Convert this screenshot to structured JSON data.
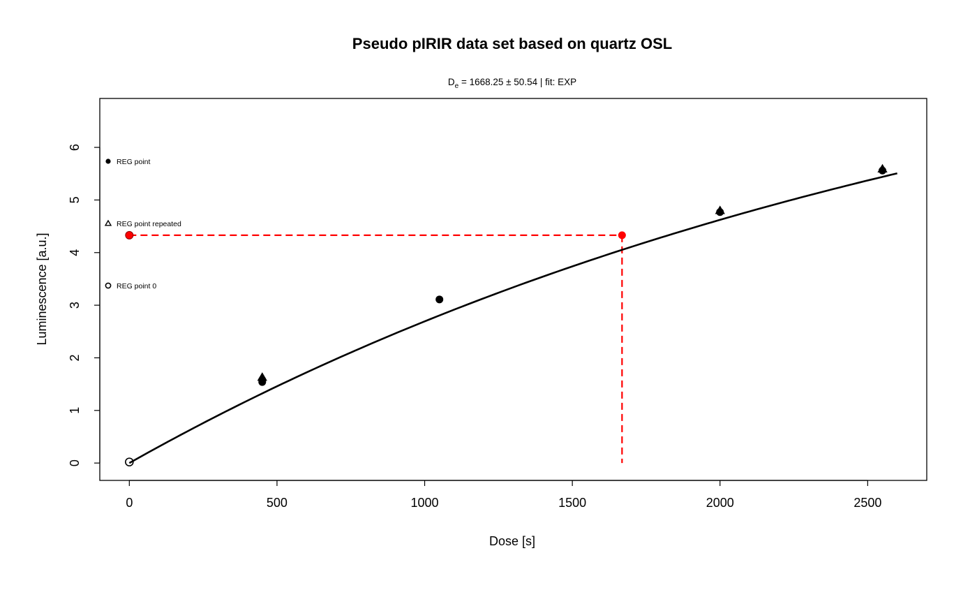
{
  "chart_data": {
    "type": "scatter",
    "title": "Pseudo pIRIR data set based on quartz OSL",
    "subtitle": {
      "de_symbol": "D",
      "de_subscript": "e",
      "rest": " = 1668.25 ± 50.54  | fit:  EXP"
    },
    "xlabel": "Dose [s]",
    "ylabel": "Luminescence [a.u.]",
    "xlim": [
      -100,
      2700
    ],
    "ylim": [
      -0.33,
      6.93
    ],
    "x_ticks": [
      0,
      500,
      1000,
      1500,
      2000,
      2500
    ],
    "y_ticks": [
      0,
      1,
      2,
      3,
      4,
      5,
      6
    ],
    "grid": false,
    "legend_position": "top-left",
    "series": [
      {
        "name": "REG point",
        "marker": "filled-circle",
        "points": [
          [
            450,
            1.54
          ],
          [
            450,
            1.58
          ],
          [
            1050,
            3.11
          ],
          [
            2000,
            4.77
          ],
          [
            2550,
            5.56
          ]
        ]
      },
      {
        "name": "REG point repeated",
        "marker": "filled-triangle",
        "points": [
          [
            450,
            1.63
          ],
          [
            2000,
            4.8
          ],
          [
            2550,
            5.59
          ]
        ]
      },
      {
        "name": "REG point 0",
        "marker": "open-circle",
        "points": [
          [
            0,
            0.02
          ]
        ]
      }
    ],
    "fit": {
      "type": "EXP",
      "a": 9.5,
      "D0": 3000,
      "x_range": [
        0,
        2600
      ],
      "color": "#000000"
    },
    "de": {
      "value": 1668.25,
      "lum": 4.33,
      "natural_point": [
        0,
        4.33
      ],
      "color": "#ff0000"
    }
  }
}
